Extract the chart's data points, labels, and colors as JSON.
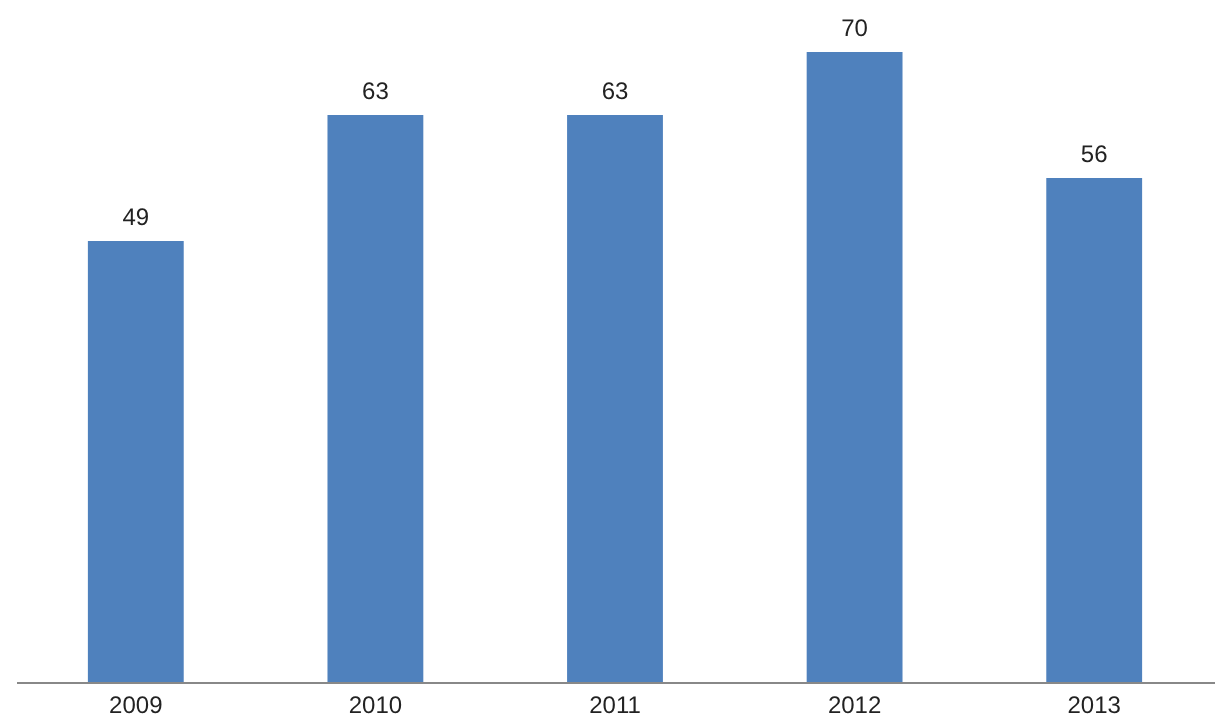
{
  "chart_data": {
    "type": "bar",
    "categories": [
      "2009",
      "2010",
      "2011",
      "2012",
      "2013"
    ],
    "values": [
      49,
      63,
      63,
      70,
      56
    ],
    "color": "#4f81bd",
    "data_labels": true,
    "tick_labels": "x"
  }
}
